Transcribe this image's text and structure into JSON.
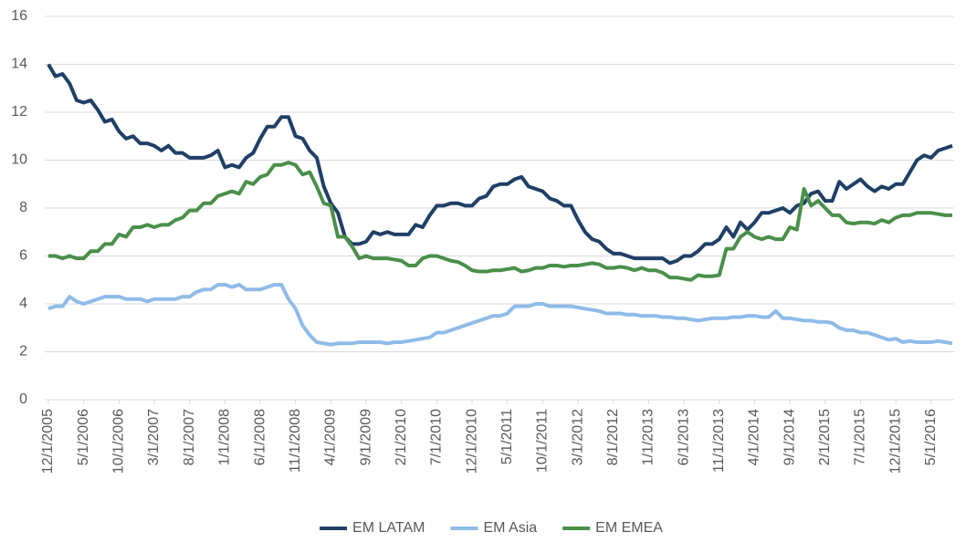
{
  "chart_data": {
    "type": "line",
    "categories": [
      "12/1/2005",
      null,
      null,
      null,
      null,
      "5/1/2006",
      null,
      null,
      null,
      null,
      "10/1/2006",
      null,
      null,
      null,
      null,
      "3/1/2007",
      null,
      null,
      null,
      null,
      "8/1/2007",
      null,
      null,
      null,
      null,
      "1/1/2008",
      null,
      null,
      null,
      null,
      "6/1/2008",
      null,
      null,
      null,
      null,
      "11/1/2008",
      null,
      null,
      null,
      null,
      "4/1/2009",
      null,
      null,
      null,
      null,
      "9/1/2009",
      null,
      null,
      null,
      null,
      "2/1/2010",
      null,
      null,
      null,
      null,
      "7/1/2010",
      null,
      null,
      null,
      null,
      "12/1/2010",
      null,
      null,
      null,
      null,
      "5/1/2011",
      null,
      null,
      null,
      null,
      "10/1/2011",
      null,
      null,
      null,
      null,
      "3/1/2012",
      null,
      null,
      null,
      null,
      "8/1/2012",
      null,
      null,
      null,
      null,
      "1/1/2013",
      null,
      null,
      null,
      null,
      "6/1/2013",
      null,
      null,
      null,
      null,
      "11/1/2013",
      null,
      null,
      null,
      null,
      "4/1/2014",
      null,
      null,
      null,
      null,
      "9/1/2014",
      null,
      null,
      null,
      null,
      "2/1/2015",
      null,
      null,
      null,
      null,
      "7/1/2015",
      null,
      null,
      null,
      null,
      "12/1/2015",
      null,
      null,
      null,
      null,
      "5/1/2016",
      null,
      null,
      null
    ],
    "series": [
      {
        "name": "EM LATAM",
        "color": "#1f3f66",
        "values": [
          14.0,
          13.5,
          13.6,
          13.2,
          12.5,
          12.4,
          12.5,
          12.1,
          11.6,
          11.7,
          11.2,
          10.9,
          11.0,
          10.7,
          10.7,
          10.6,
          10.4,
          10.6,
          10.3,
          10.3,
          10.1,
          10.1,
          10.1,
          10.2,
          10.4,
          9.7,
          9.8,
          9.7,
          10.1,
          10.3,
          10.9,
          11.4,
          11.4,
          11.8,
          11.8,
          11.0,
          10.9,
          10.4,
          10.1,
          8.9,
          8.2,
          7.8,
          6.8,
          6.5,
          6.5,
          6.6,
          7.0,
          6.9,
          7.0,
          6.9,
          6.9,
          6.9,
          7.3,
          7.2,
          7.7,
          8.1,
          8.1,
          8.2,
          8.2,
          8.1,
          8.1,
          8.4,
          8.5,
          8.9,
          9.0,
          9.0,
          9.2,
          9.3,
          8.9,
          8.8,
          8.7,
          8.4,
          8.3,
          8.1,
          8.1,
          7.5,
          7.0,
          6.7,
          6.6,
          6.3,
          6.1,
          6.1,
          6.0,
          5.9,
          5.9,
          5.9,
          5.9,
          5.9,
          5.7,
          5.8,
          6.0,
          6.0,
          6.2,
          6.5,
          6.5,
          6.7,
          7.2,
          6.8,
          7.4,
          7.1,
          7.4,
          7.8,
          7.8,
          7.9,
          8.0,
          7.8,
          8.1,
          8.2,
          8.6,
          8.7,
          8.3,
          8.3,
          9.1,
          8.8,
          9.0,
          9.2,
          8.9,
          8.7,
          8.9,
          8.8,
          9.0,
          9.0,
          9.5,
          10.0,
          10.2,
          10.1,
          10.4,
          10.5,
          10.6
        ]
      },
      {
        "name": "EM Asia",
        "color": "#8fbbe8",
        "values": [
          3.8,
          3.9,
          3.9,
          4.3,
          4.1,
          4.0,
          4.1,
          4.2,
          4.3,
          4.3,
          4.3,
          4.2,
          4.2,
          4.2,
          4.1,
          4.2,
          4.2,
          4.2,
          4.2,
          4.3,
          4.3,
          4.5,
          4.6,
          4.6,
          4.8,
          4.8,
          4.7,
          4.8,
          4.6,
          4.6,
          4.6,
          4.7,
          4.8,
          4.8,
          4.2,
          3.8,
          3.1,
          2.7,
          2.4,
          2.35,
          2.3,
          2.35,
          2.35,
          2.35,
          2.4,
          2.4,
          2.4,
          2.4,
          2.35,
          2.4,
          2.4,
          2.45,
          2.5,
          2.55,
          2.6,
          2.8,
          2.8,
          2.9,
          3.0,
          3.1,
          3.2,
          3.3,
          3.4,
          3.5,
          3.5,
          3.6,
          3.9,
          3.9,
          3.9,
          4.0,
          4.0,
          3.9,
          3.9,
          3.9,
          3.9,
          3.85,
          3.8,
          3.75,
          3.7,
          3.6,
          3.6,
          3.6,
          3.55,
          3.55,
          3.5,
          3.5,
          3.5,
          3.45,
          3.45,
          3.4,
          3.4,
          3.35,
          3.3,
          3.35,
          3.4,
          3.4,
          3.4,
          3.45,
          3.45,
          3.5,
          3.5,
          3.45,
          3.45,
          3.7,
          3.4,
          3.4,
          3.35,
          3.3,
          3.3,
          3.25,
          3.25,
          3.2,
          3.0,
          2.9,
          2.9,
          2.8,
          2.8,
          2.7,
          2.6,
          2.5,
          2.55,
          2.4,
          2.45,
          2.4,
          2.4,
          2.4,
          2.45,
          2.4,
          2.35
        ]
      },
      {
        "name": "EM EMEA",
        "color": "#4a8f4a",
        "values": [
          6.0,
          6.0,
          5.9,
          6.0,
          5.9,
          5.9,
          6.2,
          6.2,
          6.5,
          6.5,
          6.9,
          6.8,
          7.2,
          7.2,
          7.3,
          7.2,
          7.3,
          7.3,
          7.5,
          7.6,
          7.9,
          7.9,
          8.2,
          8.2,
          8.5,
          8.6,
          8.7,
          8.6,
          9.1,
          9.0,
          9.3,
          9.4,
          9.8,
          9.8,
          9.9,
          9.8,
          9.4,
          9.5,
          8.9,
          8.2,
          8.1,
          6.8,
          6.8,
          6.4,
          5.9,
          6.0,
          5.9,
          5.9,
          5.9,
          5.85,
          5.8,
          5.6,
          5.6,
          5.9,
          6.0,
          6.0,
          5.9,
          5.8,
          5.75,
          5.6,
          5.4,
          5.35,
          5.35,
          5.4,
          5.4,
          5.45,
          5.5,
          5.35,
          5.4,
          5.5,
          5.5,
          5.6,
          5.6,
          5.55,
          5.6,
          5.6,
          5.65,
          5.7,
          5.65,
          5.5,
          5.5,
          5.55,
          5.5,
          5.4,
          5.5,
          5.4,
          5.4,
          5.3,
          5.1,
          5.1,
          5.05,
          5.0,
          5.2,
          5.15,
          5.15,
          5.2,
          6.3,
          6.3,
          6.8,
          7.0,
          6.8,
          6.7,
          6.8,
          6.7,
          6.7,
          7.2,
          7.1,
          8.8,
          8.1,
          8.3,
          8.0,
          7.7,
          7.7,
          7.4,
          7.35,
          7.4,
          7.4,
          7.35,
          7.5,
          7.4,
          7.6,
          7.7,
          7.7,
          7.8,
          7.8,
          7.8,
          7.75,
          7.7,
          7.7
        ]
      }
    ],
    "ylim": [
      0,
      16
    ],
    "yticks": [
      0,
      2,
      4,
      6,
      8,
      10,
      12,
      14,
      16
    ],
    "grid": true,
    "legend": "bottom"
  }
}
